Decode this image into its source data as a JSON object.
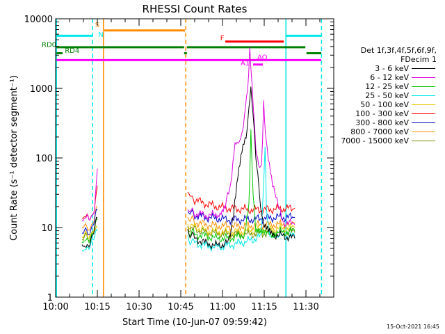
{
  "chart_data": {
    "type": "line",
    "title": "RHESSI Count Rates",
    "xlabel": "Start Time (10-Jun-07 09:59:42)",
    "ylabel": "Count Rate (s⁻¹ detector segment⁻¹)",
    "x_unit": "minutes after 10:00 UT",
    "xlim": [
      0,
      100
    ],
    "ylim": [
      1,
      10000
    ],
    "yscale": "log",
    "x_ticks": [
      {
        "v": 0,
        "label": "10:00"
      },
      {
        "v": 15,
        "label": "10:15"
      },
      {
        "v": 30,
        "label": "10:30"
      },
      {
        "v": 45,
        "label": "10:45"
      },
      {
        "v": 60,
        "label": "11:00"
      },
      {
        "v": 75,
        "label": "11:15"
      },
      {
        "v": 90,
        "label": "11:30"
      }
    ],
    "y_ticks": [
      {
        "v": 1,
        "label": "1"
      },
      {
        "v": 10,
        "label": "10"
      },
      {
        "v": 100,
        "label": "100"
      },
      {
        "v": 1000,
        "label": "1000"
      },
      {
        "v": 10000,
        "label": "10000"
      }
    ],
    "legend_header": [
      "Det 1f,3f,4f,5f,6f,9f,",
      "FDecim 1"
    ],
    "legend_position": "right",
    "series": [
      {
        "name": "3 - 6 keV",
        "color": "#000000",
        "segments": [
          [
            [
              9.5,
              6
            ],
            [
              11,
              5.5
            ],
            [
              12,
              6
            ],
            [
              13,
              7
            ],
            [
              14,
              9
            ],
            [
              15,
              14
            ]
          ],
          [
            [
              47.5,
              9
            ],
            [
              50,
              7
            ],
            [
              54,
              6
            ],
            [
              58,
              5.5
            ],
            [
              62,
              6
            ],
            [
              64,
              15
            ],
            [
              65.5,
              60
            ],
            [
              67,
              120
            ],
            [
              68.5,
              200
            ],
            [
              69.5,
              500
            ],
            [
              70.2,
              1200
            ],
            [
              71,
              400
            ],
            [
              72,
              110
            ],
            [
              73,
              40
            ],
            [
              74,
              16
            ],
            [
              75,
              10
            ],
            [
              78,
              8
            ],
            [
              82,
              7.5
            ],
            [
              86,
              7
            ]
          ]
        ]
      },
      {
        "name": "6 - 12 keV",
        "color": "#e000e0",
        "segments": [
          [
            [
              9.5,
              12
            ],
            [
              11,
              13
            ],
            [
              12,
              14
            ],
            [
              13,
              15
            ],
            [
              14,
              20
            ],
            [
              15,
              70
            ]
          ],
          [
            [
              47.5,
              18
            ],
            [
              50,
              16
            ],
            [
              54,
              15
            ],
            [
              58,
              15
            ],
            [
              61,
              20
            ],
            [
              63,
              45
            ],
            [
              64.5,
              150
            ],
            [
              66,
              170
            ],
            [
              67.5,
              300
            ],
            [
              69,
              900
            ],
            [
              69.8,
              3500
            ],
            [
              70.5,
              1500
            ],
            [
              71,
              600
            ],
            [
              72,
              140
            ],
            [
              73,
              80
            ],
            [
              74,
              70
            ],
            [
              74.8,
              600
            ],
            [
              75.5,
              220
            ],
            [
              76.5,
              90
            ],
            [
              78,
              40
            ],
            [
              80,
              20
            ],
            [
              82,
              12
            ],
            [
              86,
              11
            ]
          ]
        ]
      },
      {
        "name": "12 - 25 keV",
        "color": "#00c800",
        "segments": [
          [
            [
              9.5,
              6.5
            ],
            [
              11,
              6.8
            ],
            [
              12,
              7
            ],
            [
              13,
              7.5
            ],
            [
              14,
              9
            ],
            [
              15,
              13
            ]
          ],
          [
            [
              47.5,
              9
            ],
            [
              50,
              8
            ],
            [
              54,
              7.5
            ],
            [
              58,
              7
            ],
            [
              62,
              7
            ],
            [
              66,
              7.5
            ],
            [
              68,
              8
            ],
            [
              69.5,
              20
            ],
            [
              70.2,
              250
            ],
            [
              71,
              30
            ],
            [
              72,
              9
            ],
            [
              75,
              8
            ],
            [
              80,
              8.5
            ],
            [
              86,
              9
            ]
          ]
        ]
      },
      {
        "name": "25 - 50 keV",
        "color": "#00e8e8",
        "segments": [
          [
            [
              9.5,
              5
            ],
            [
              11,
              5.2
            ],
            [
              12,
              5.5
            ],
            [
              13,
              6
            ],
            [
              14,
              7
            ],
            [
              15,
              9
            ]
          ],
          [
            [
              47.5,
              7
            ],
            [
              50,
              6
            ],
            [
              54,
              5.5
            ],
            [
              58,
              5.2
            ],
            [
              62,
              5.5
            ],
            [
              66,
              6
            ],
            [
              70,
              6.5
            ],
            [
              72,
              7
            ],
            [
              74,
              7.5
            ],
            [
              75.3,
              150
            ],
            [
              75.8,
              20
            ],
            [
              77,
              8
            ],
            [
              80,
              7.5
            ],
            [
              86,
              7.5
            ]
          ]
        ]
      },
      {
        "name": "50 - 100 keV",
        "color": "#e8c800",
        "segments": [
          [
            [
              9.5,
              7.5
            ],
            [
              12,
              8
            ],
            [
              15,
              10
            ]
          ],
          [
            [
              47.5,
              11
            ],
            [
              54,
              9
            ],
            [
              62,
              8.5
            ],
            [
              70,
              9
            ],
            [
              78,
              9.5
            ],
            [
              86,
              10
            ]
          ]
        ]
      },
      {
        "name": "100 - 300 keV",
        "color": "#ff0000",
        "segments": [
          [
            [
              9.5,
              13
            ],
            [
              11,
              13.5
            ],
            [
              12,
              14
            ],
            [
              13,
              15
            ],
            [
              14,
              20
            ],
            [
              15,
              40
            ]
          ],
          [
            [
              47.5,
              30
            ],
            [
              50,
              25
            ],
            [
              54,
              22
            ],
            [
              58,
              20
            ],
            [
              62,
              19
            ],
            [
              66,
              18.5
            ],
            [
              70,
              18
            ],
            [
              74,
              18
            ],
            [
              80,
              18.5
            ],
            [
              86,
              19
            ]
          ]
        ]
      },
      {
        "name": "300 - 800 keV",
        "color": "#0000c8",
        "segments": [
          [
            [
              9.5,
              8.5
            ],
            [
              12,
              9
            ],
            [
              13,
              10
            ],
            [
              14,
              13
            ],
            [
              15,
              18
            ]
          ],
          [
            [
              47.5,
              17
            ],
            [
              50,
              15
            ],
            [
              54,
              14
            ],
            [
              58,
              13.5
            ],
            [
              62,
              13
            ],
            [
              66,
              13
            ],
            [
              70,
              13
            ],
            [
              74,
              13.5
            ],
            [
              80,
              14
            ],
            [
              86,
              14
            ]
          ]
        ]
      },
      {
        "name": "800 - 7000 keV",
        "color": "#ff8c00",
        "segments": [
          [
            [
              9.5,
              10
            ],
            [
              12,
              10.5
            ],
            [
              13,
              11
            ],
            [
              14,
              14
            ],
            [
              15,
              20
            ]
          ],
          [
            [
              47.5,
              14
            ],
            [
              50,
              12
            ],
            [
              54,
              11
            ],
            [
              58,
              10.5
            ],
            [
              62,
              10.5
            ],
            [
              66,
              10.5
            ],
            [
              70,
              10.5
            ],
            [
              74,
              11
            ],
            [
              80,
              11
            ],
            [
              86,
              11.5
            ]
          ]
        ]
      },
      {
        "name": "7000 - 15000 keV",
        "color": "#6e8c00",
        "segments": [
          [
            [
              9.5,
              7
            ],
            [
              12,
              7.5
            ],
            [
              13,
              8
            ],
            [
              14,
              10
            ],
            [
              15,
              13
            ]
          ],
          [
            [
              47.5,
              10
            ],
            [
              54,
              8.5
            ],
            [
              62,
              8
            ],
            [
              70,
              8
            ],
            [
              78,
              8.5
            ],
            [
              86,
              8.5
            ]
          ]
        ]
      }
    ],
    "annotations": {
      "vlines": [
        {
          "x": 0.3,
          "color": "#00e8e8",
          "style": "solid"
        },
        {
          "x": 13.3,
          "color": "#00e8e8",
          "style": "dash"
        },
        {
          "x": 17.2,
          "color": "#ff8c00",
          "style": "solid"
        },
        {
          "x": 46.8,
          "color": "#ff8c00",
          "style": "dash"
        },
        {
          "x": 82.8,
          "color": "#00e8e8",
          "style": "solid"
        },
        {
          "x": 95.6,
          "color": "#00e8e8",
          "style": "dash"
        }
      ],
      "hbars": [
        {
          "x0": 0.3,
          "x1": 13.3,
          "y": 5700,
          "color": "#00e8e8"
        },
        {
          "x0": 83,
          "x1": 95.5,
          "y": 5700,
          "color": "#00e8e8"
        },
        {
          "x0": 17.5,
          "x1": 46.5,
          "y": 6800,
          "color": "#ff8c00"
        },
        {
          "x0": 61,
          "x1": 82,
          "y": 4700,
          "color": "#ff0000"
        },
        {
          "x0": 0.3,
          "x1": 46.2,
          "y": 3900,
          "color": "#008000"
        },
        {
          "x0": 47.2,
          "x1": 89.8,
          "y": 3900,
          "color": "#008000"
        },
        {
          "x0": 0.3,
          "x1": 2.5,
          "y": 3200,
          "color": "#008000"
        },
        {
          "x0": 46.2,
          "x1": 47.2,
          "y": 3200,
          "color": "#008000"
        },
        {
          "x0": 90.2,
          "x1": 95.5,
          "y": 3200,
          "color": "#008000"
        },
        {
          "x0": 0.3,
          "x1": 95.5,
          "y": 2550,
          "color": "#ff00ff"
        },
        {
          "x0": 71,
          "x1": 74.5,
          "y": 2200,
          "color": "#ff00ff"
        }
      ],
      "labels": [
        {
          "text": "S",
          "x": 14.2,
          "y": 7600,
          "color": "#ff8c00"
        },
        {
          "text": "N",
          "x": 15.3,
          "y": 5500,
          "color": "#00e8e8"
        },
        {
          "text": "F",
          "x": 59.2,
          "y": 4900,
          "color": "#ff0000"
        },
        {
          "text": "RD0",
          "x": -5,
          "y": 3950,
          "color": "#008000"
        },
        {
          "text": "RD4",
          "x": 3.3,
          "y": 3250,
          "color": "#008000"
        },
        {
          "text": "AQ",
          "x": 72.5,
          "y": 2600,
          "color": "#ff00ff"
        },
        {
          "text": "A1",
          "x": 66.5,
          "y": 2150,
          "color": "#ff00ff"
        }
      ]
    }
  },
  "timestamp": "15-Oct-2021 16:45"
}
